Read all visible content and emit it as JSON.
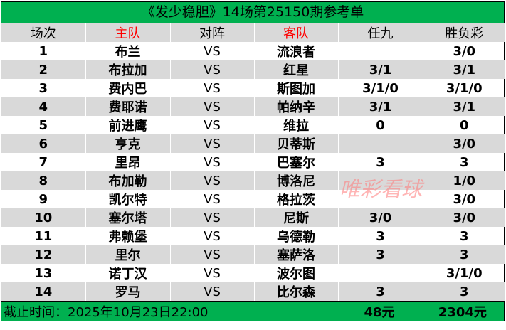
{
  "title": "《发少稳胆》14场第25150期参考单",
  "headers": [
    "场次",
    "主队",
    "对阵",
    "客队",
    "任九",
    "胜负彩"
  ],
  "header_colors": {
    "highlight": "#ff0000",
    "title_bg": "#00b050",
    "row_alt": "#d9d9d9"
  },
  "rows": [
    {
      "no": "1",
      "home": "布兰",
      "vs": "VS",
      "away": "流浪者",
      "r9": "",
      "sfc": "3/0"
    },
    {
      "no": "2",
      "home": "布拉加",
      "vs": "VS",
      "away": "红星",
      "r9": "3/1",
      "sfc": "3/1"
    },
    {
      "no": "3",
      "home": "费内巴",
      "vs": "VS",
      "away": "斯图加",
      "r9": "3/1/0",
      "sfc": "3/1/0"
    },
    {
      "no": "4",
      "home": "费耶诺",
      "vs": "VS",
      "away": "帕纳辛",
      "r9": "3/1",
      "sfc": "3/1"
    },
    {
      "no": "5",
      "home": "前进鹰",
      "vs": "VS",
      "away": "维拉",
      "r9": "0",
      "sfc": "0"
    },
    {
      "no": "6",
      "home": "亨克",
      "vs": "VS",
      "away": "贝蒂斯",
      "r9": "",
      "sfc": "3/0"
    },
    {
      "no": "7",
      "home": "里昂",
      "vs": "VS",
      "away": "巴塞尔",
      "r9": "3",
      "sfc": "3"
    },
    {
      "no": "8",
      "home": "布加勒",
      "vs": "VS",
      "away": "博洛尼",
      "r9": "",
      "sfc": "1/0"
    },
    {
      "no": "9",
      "home": "凯尔特",
      "vs": "VS",
      "away": "格拉茨",
      "r9": "",
      "sfc": "3/0"
    },
    {
      "no": "10",
      "home": "塞尔塔",
      "vs": "VS",
      "away": "尼斯",
      "r9": "3/0",
      "sfc": "3/0"
    },
    {
      "no": "11",
      "home": "弗赖堡",
      "vs": "VS",
      "away": "乌德勒",
      "r9": "3",
      "sfc": "3"
    },
    {
      "no": "12",
      "home": "里尔",
      "vs": "VS",
      "away": "塞萨洛",
      "r9": "3",
      "sfc": "3"
    },
    {
      "no": "13",
      "home": "诺丁汉",
      "vs": "VS",
      "away": "波尔图",
      "r9": "",
      "sfc": "3/1/0"
    },
    {
      "no": "14",
      "home": "罗马",
      "vs": "VS",
      "away": "比尔森",
      "r9": "3",
      "sfc": "3"
    }
  ],
  "footer": {
    "deadline": "截止时间：2025年10月23日22:00",
    "r9_cost": "48元",
    "sfc_cost": "2304元"
  },
  "watermark": "唯彩看球"
}
